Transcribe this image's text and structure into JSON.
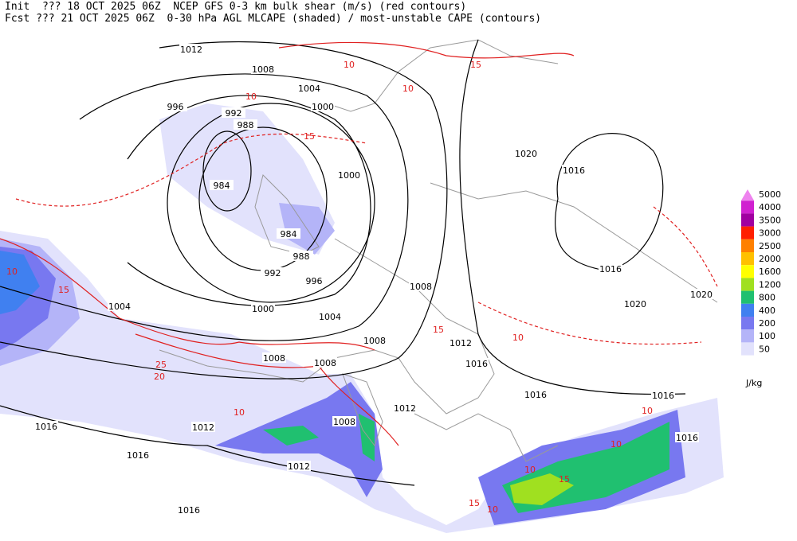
{
  "header": {
    "line1": "Init  ??? 18 OCT 2025 06Z  NCEP GFS 0-3 km bulk shear (m/s) (red contours)",
    "line2": "Fcst ??? 21 OCT 2025 06Z  0-30 hPa AGL MLCAPE (shaded) / most-unstable CAPE (contours)"
  },
  "legend": {
    "unit": "J/kg",
    "levels": [
      {
        "label": "5000",
        "color": "#ee82ee"
      },
      {
        "label": "4000",
        "color": "#d020d0"
      },
      {
        "label": "3500",
        "color": "#a000a0"
      },
      {
        "label": "3000",
        "color": "#ff2000"
      },
      {
        "label": "2500",
        "color": "#ff8000"
      },
      {
        "label": "2000",
        "color": "#ffc000"
      },
      {
        "label": "1600",
        "color": "#ffff00"
      },
      {
        "label": "1200",
        "color": "#a0e020"
      },
      {
        "label": "800",
        "color": "#20c070"
      },
      {
        "label": "400",
        "color": "#4080f0"
      },
      {
        "label": "200",
        "color": "#7878f0"
      },
      {
        "label": "100",
        "color": "#b4b4f8"
      },
      {
        "label": "50",
        "color": "#e2e2fc"
      }
    ]
  },
  "isobar_labels": [
    "1012",
    "1008",
    "1004",
    "996",
    "1000",
    "992",
    "988",
    "1020",
    "1016",
    "1000",
    "984",
    "984",
    "988",
    "992",
    "996",
    "1016",
    "1008",
    "1004",
    "1000",
    "1020",
    "1020",
    "1004",
    "1012",
    "1008",
    "1008",
    "1008",
    "1016",
    "1016",
    "1016",
    "1012",
    "1008",
    "1016",
    "1012",
    "1016",
    "1016",
    "1012",
    "1016"
  ],
  "shear_labels": [
    "10",
    "15",
    "10",
    "15",
    "10",
    "10",
    "15",
    "20",
    "25",
    "15",
    "10",
    "10",
    "15",
    "10",
    "10",
    "15",
    "10",
    "10"
  ]
}
